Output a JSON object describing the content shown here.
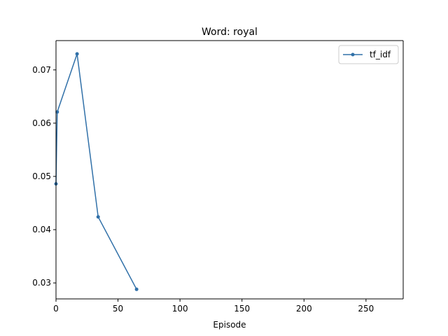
{
  "chart_data": {
    "type": "line",
    "title": "Word: royal",
    "xlabel": "Episode",
    "ylabel": "",
    "xlim": [
      0,
      280
    ],
    "ylim": [
      0.027,
      0.0755
    ],
    "xticks": [
      0,
      50,
      100,
      150,
      200,
      250
    ],
    "yticks": [
      0.03,
      0.04,
      0.05,
      0.06,
      0.07
    ],
    "xtick_labels": [
      "0",
      "50",
      "100",
      "150",
      "200",
      "250"
    ],
    "ytick_labels": [
      "0.03",
      "0.04",
      "0.05",
      "0.06",
      "0.07"
    ],
    "grid": false,
    "legend_position": "top-right",
    "series": [
      {
        "name": "tf_idf",
        "color": "#3070a8",
        "marker": "circle",
        "points": [
          {
            "x": 0,
            "y": 0.0486
          },
          {
            "x": 1,
            "y": 0.0621
          },
          {
            "x": 17,
            "y": 0.073
          },
          {
            "x": 34,
            "y": 0.0424
          },
          {
            "x": 65,
            "y": 0.0288
          }
        ]
      }
    ]
  }
}
